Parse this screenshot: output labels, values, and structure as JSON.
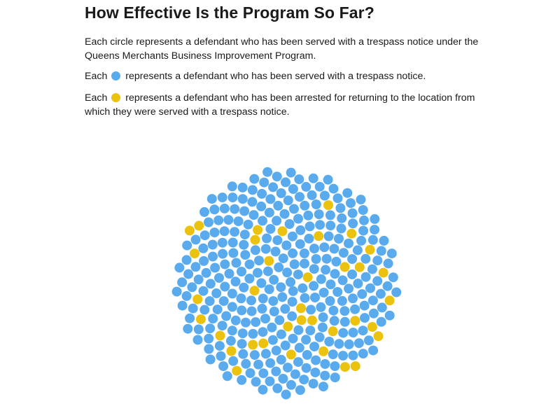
{
  "title": "How Effective Is the Program So Far?",
  "intro": "Each circle represents a defendant who has been served with a trespass notice under the Queens Merchants Business Improvement Program.",
  "legend": {
    "served": {
      "prefix": "Each",
      "text": "represents a defendant who has been served with a trespass notice.",
      "color": "#5aabee"
    },
    "arrested": {
      "prefix": "Each",
      "text": "represents a defendant who has been arrested for returning to the location from which they were served with a trespass notice.",
      "color": "#ebc20d"
    }
  },
  "chart_data": {
    "type": "packed-circles",
    "categories": [
      "served",
      "arrested"
    ],
    "counts": {
      "served": 308,
      "arrested": 36,
      "total": 344
    },
    "colors": {
      "served": "#5aabee",
      "arrested": "#ebc20d"
    },
    "arrested_circle_indices": [
      13,
      20,
      24,
      30,
      45,
      53,
      58,
      70,
      75,
      86,
      96,
      102,
      116,
      126,
      137,
      142,
      157,
      168,
      173,
      183,
      200,
      209,
      213,
      225,
      229,
      242,
      258,
      262,
      267,
      281,
      291,
      300,
      309,
      317,
      325,
      334
    ]
  }
}
